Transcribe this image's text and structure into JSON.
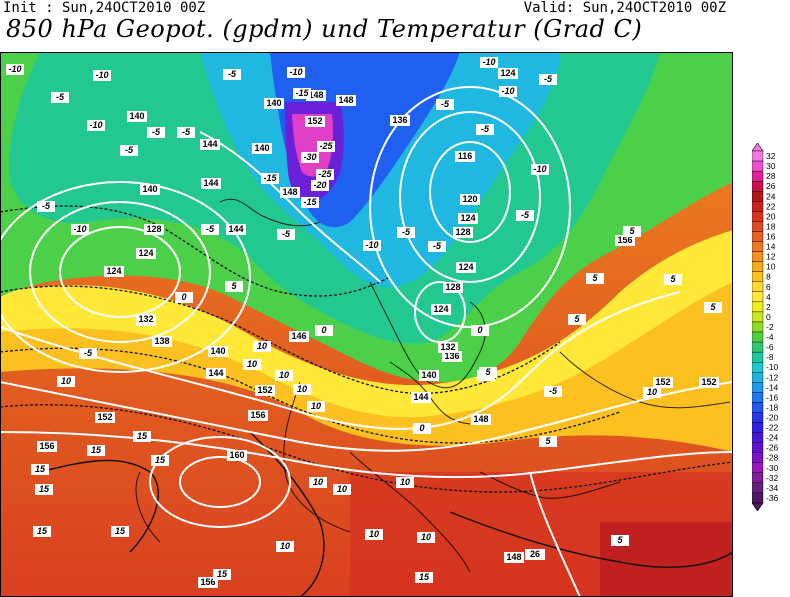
{
  "header": {
    "init": "Init : Sun,24OCT2010 00Z",
    "valid": "Valid: Sun,24OCT2010 00Z",
    "title": "850 hPa Geopot. (gpdm) und Temperatur (Grad C)"
  },
  "legend": {
    "entries": [
      {
        "label": "32",
        "color": "#f07ae0"
      },
      {
        "label": "30",
        "color": "#f050d0"
      },
      {
        "label": "28",
        "color": "#e0209a"
      },
      {
        "label": "26",
        "color": "#c8104a"
      },
      {
        "label": "24",
        "color": "#b01818"
      },
      {
        "label": "22",
        "color": "#c82020"
      },
      {
        "label": "20",
        "color": "#dc3020"
      },
      {
        "label": "18",
        "color": "#e04820"
      },
      {
        "label": "16",
        "color": "#e86020"
      },
      {
        "label": "14",
        "color": "#f07820"
      },
      {
        "label": "12",
        "color": "#f49020"
      },
      {
        "label": "10",
        "color": "#f8a818"
      },
      {
        "label": "8",
        "color": "#fcc020"
      },
      {
        "label": "6",
        "color": "#ffd830"
      },
      {
        "label": "4",
        "color": "#ffe838"
      },
      {
        "label": "2",
        "color": "#f0f020"
      },
      {
        "label": "0",
        "color": "#c8e820"
      },
      {
        "label": "-2",
        "color": "#8cdc28"
      },
      {
        "label": "-4",
        "color": "#50d040"
      },
      {
        "label": "-6",
        "color": "#30c870"
      },
      {
        "label": "-8",
        "color": "#20c8a0"
      },
      {
        "label": "-10",
        "color": "#20c8c8"
      },
      {
        "label": "-12",
        "color": "#20b4e0"
      },
      {
        "label": "-14",
        "color": "#2098e8"
      },
      {
        "label": "-16",
        "color": "#2078f0"
      },
      {
        "label": "-18",
        "color": "#2058f0"
      },
      {
        "label": "-20",
        "color": "#2838e8"
      },
      {
        "label": "-22",
        "color": "#3020e0"
      },
      {
        "label": "-24",
        "color": "#4818d8"
      },
      {
        "label": "-26",
        "color": "#6410d0"
      },
      {
        "label": "-28",
        "color": "#8010c8"
      },
      {
        "label": "-30",
        "color": "#9818c0"
      },
      {
        "label": "-32",
        "color": "#7c2098"
      },
      {
        "label": "-34",
        "color": "#642078"
      },
      {
        "label": "-36",
        "color": "#4c1860"
      }
    ]
  },
  "map": {
    "geopotential_labels": [
      "124",
      "140",
      "144",
      "148",
      "152",
      "148",
      "136",
      "124",
      "116",
      "120",
      "124",
      "128",
      "140",
      "144",
      "140",
      "148",
      "140",
      "140",
      "132",
      "128",
      "124",
      "144",
      "136",
      "132",
      "124",
      "128",
      "124",
      "132",
      "138",
      "140",
      "144",
      "146",
      "152",
      "156",
      "160",
      "156",
      "156",
      "152",
      "152",
      "144",
      "148",
      "152",
      "148",
      "26",
      "156"
    ],
    "temperature_labels": [
      "-10",
      "-10",
      "-5",
      "-10",
      "-5",
      "-10",
      "-5",
      "-5",
      "-10",
      "-5",
      "-10",
      "-5",
      "-5",
      "-5",
      "-15",
      "-15",
      "-20",
      "-25",
      "-25",
      "-30",
      "-15",
      "-10",
      "-5",
      "-5",
      "-5",
      "-5",
      "-10",
      "-5",
      "-5",
      "-5",
      "-5",
      "0",
      "0",
      "0",
      "0",
      "5",
      "5",
      "5",
      "5",
      "5",
      "5",
      "5",
      "10",
      "10",
      "10",
      "10",
      "10",
      "10",
      "10",
      "10",
      "15",
      "15",
      "15",
      "15",
      "15",
      "15",
      "15",
      "15",
      "15",
      "10",
      "10",
      "10",
      "10",
      "10",
      "-10",
      "-5",
      "5",
      "5",
      "10",
      "0"
    ]
  }
}
